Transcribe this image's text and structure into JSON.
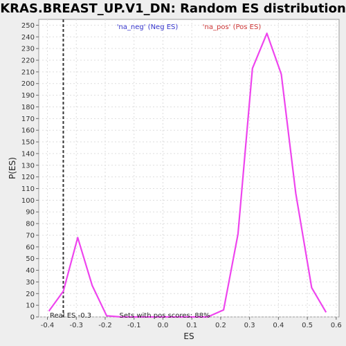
{
  "chart_data": {
    "type": "line",
    "title": "KRAS.BREAST_UP.V1_DN: Random ES distribution",
    "xlabel": "ES",
    "ylabel": "P(ES)",
    "xlim": [
      -0.43,
      0.61
    ],
    "ylim": [
      0,
      255
    ],
    "x_ticks": [
      -0.4,
      -0.3,
      -0.2,
      -0.1,
      0.0,
      0.1,
      0.2,
      0.3,
      0.4,
      0.5,
      0.6
    ],
    "x_tick_labels": [
      "-0.4",
      "-0.3",
      "-0.2",
      "-0.1",
      "0.0",
      "0.1",
      "0.2",
      "0.3",
      "0.4",
      "0.5",
      "0.6"
    ],
    "y_ticks": [
      0,
      10,
      20,
      30,
      40,
      50,
      60,
      70,
      80,
      90,
      100,
      110,
      120,
      130,
      140,
      150,
      160,
      170,
      180,
      190,
      200,
      210,
      220,
      230,
      240,
      250
    ],
    "grid": true,
    "legend": {
      "neg": "'na_neg' (Neg ES)",
      "pos": "'na_pos' (Pos ES)",
      "neg_color": "#3333cc",
      "pos_color": "#cc3333"
    },
    "series": [
      {
        "color": "#ee44ee",
        "x": [
          -0.395,
          -0.345,
          -0.295,
          -0.245,
          -0.195,
          -0.145,
          -0.095,
          -0.045,
          0.005,
          0.055,
          0.105,
          0.155,
          0.21,
          0.26,
          0.31,
          0.36,
          0.41,
          0.46,
          0.515,
          0.565
        ],
        "values": [
          5,
          22,
          68,
          27,
          1,
          0,
          0,
          0,
          0,
          0,
          0,
          0,
          6,
          71,
          213,
          243,
          208,
          106,
          25,
          4
        ]
      }
    ],
    "real_es": {
      "x": -0.345,
      "label": "Real ES -0.3"
    },
    "annotation": "Sets with pos scores: 88%"
  }
}
